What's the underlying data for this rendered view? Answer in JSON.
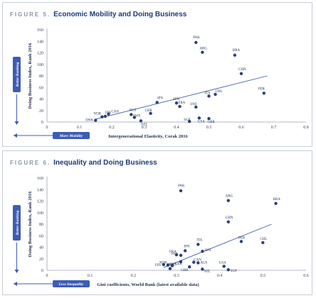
{
  "charts": [
    {
      "figure_label": "FIGURE 5.",
      "figure_title": "Economic Mobility and Doing Business",
      "note_y": "Better Ranking",
      "note_x": "More Mobility",
      "colors": {
        "point": "#2b3f78",
        "trend": "#3c5aa8",
        "axis": "#9aa3b5",
        "accent": "#3d5cb3"
      }
    },
    {
      "figure_label": "FIGURE 6.",
      "figure_title": "Inequality and Doing Business",
      "note_y": "Better Ranking",
      "note_x": "Less Inequality",
      "colors": {
        "point": "#2b3f78",
        "trend": "#3c5aa8",
        "axis": "#9aa3b5",
        "accent": "#3d5cb3"
      }
    }
  ],
  "chart_data": [
    {
      "type": "scatter",
      "title": "Economic Mobility and Doing Business",
      "xlabel": "Intergenerational Elasticity, Corak 2016",
      "ylabel": "Doing Business Index, Rank 2016",
      "xlim": [
        0,
        0.8
      ],
      "ylim": [
        0,
        160
      ],
      "xticks": [
        "0",
        "0.1",
        "0.2",
        "0.3",
        "0.4",
        "0.5",
        "0.6",
        "0.7",
        "0.8"
      ],
      "yticks": [
        "0",
        "20",
        "40",
        "60",
        "80",
        "100",
        "120",
        "140",
        "160"
      ],
      "grid": false,
      "trendline": {
        "x": [
          0.15,
          0.68
        ],
        "y": [
          5,
          80
        ]
      },
      "points": [
        {
          "label": "DNK",
          "x": 0.15,
          "y": 3
        },
        {
          "label": "NOR",
          "x": 0.17,
          "y": 9
        },
        {
          "label": "FIN",
          "x": 0.18,
          "y": 10
        },
        {
          "label": "CAN",
          "x": 0.19,
          "y": 14
        },
        {
          "label": "AUS",
          "x": 0.26,
          "y": 13
        },
        {
          "label": "SWE",
          "x": 0.27,
          "y": 8
        },
        {
          "label": "NZL",
          "x": 0.29,
          "y": 2
        },
        {
          "label": "GER",
          "x": 0.32,
          "y": 15
        },
        {
          "label": "JPN",
          "x": 0.34,
          "y": 34
        },
        {
          "label": "SPN",
          "x": 0.4,
          "y": 33
        },
        {
          "label": "FRA",
          "x": 0.41,
          "y": 27
        },
        {
          "label": "SWI",
          "x": 0.46,
          "y": 26
        },
        {
          "label": "SGP",
          "x": 0.44,
          "y": 1
        },
        {
          "label": "USA",
          "x": 0.47,
          "y": 7
        },
        {
          "label": "GBR",
          "x": 0.5,
          "y": 6
        },
        {
          "label": "ITA",
          "x": 0.5,
          "y": 45
        },
        {
          "label": "CHL",
          "x": 0.52,
          "y": 48
        },
        {
          "label": "PAK",
          "x": 0.46,
          "y": 138
        },
        {
          "label": "ARG",
          "x": 0.48,
          "y": 121
        },
        {
          "label": "BRA",
          "x": 0.58,
          "y": 116
        },
        {
          "label": "CHN",
          "x": 0.6,
          "y": 84
        },
        {
          "label": "PER",
          "x": 0.67,
          "y": 50
        }
      ]
    },
    {
      "type": "scatter",
      "title": "Inequality and Doing Business",
      "xlabel": "Gini coefficients, World Bank (latest available data)",
      "ylabel": "Doing Business Index, Rank 2016",
      "xlim": [
        0,
        0.6
      ],
      "ylim": [
        0,
        160
      ],
      "xticks": [
        "0",
        "0.1",
        "0.2",
        "0.3",
        "0.4",
        "0.5",
        "0.6"
      ],
      "yticks": [
        "0",
        "20",
        "40",
        "60",
        "80",
        "100",
        "120",
        "140",
        "160"
      ],
      "grid": false,
      "trendline": {
        "x": [
          0.27,
          0.52
        ],
        "y": [
          5,
          80
        ]
      },
      "points": [
        {
          "label": "FIN",
          "x": 0.27,
          "y": 10
        },
        {
          "label": "NOR",
          "x": 0.28,
          "y": 9
        },
        {
          "label": "DNK",
          "x": 0.285,
          "y": 3
        },
        {
          "label": "SWE",
          "x": 0.29,
          "y": 8
        },
        {
          "label": "FRA",
          "x": 0.3,
          "y": 27
        },
        {
          "label": "SWI",
          "x": 0.31,
          "y": 26
        },
        {
          "label": "GER",
          "x": 0.31,
          "y": 15
        },
        {
          "label": "GBR",
          "x": 0.33,
          "y": 6
        },
        {
          "label": "JPN",
          "x": 0.32,
          "y": 34
        },
        {
          "label": "CAN",
          "x": 0.34,
          "y": 14
        },
        {
          "label": "ITA",
          "x": 0.35,
          "y": 45
        },
        {
          "label": "SPN",
          "x": 0.36,
          "y": 33
        },
        {
          "label": "AUS",
          "x": 0.35,
          "y": 13
        },
        {
          "label": "NZL",
          "x": 0.36,
          "y": 2
        },
        {
          "label": "PAK",
          "x": 0.31,
          "y": 138
        },
        {
          "label": "ARG",
          "x": 0.42,
          "y": 121
        },
        {
          "label": "BRA",
          "x": 0.53,
          "y": 116
        },
        {
          "label": "CHN",
          "x": 0.42,
          "y": 84
        },
        {
          "label": "PER",
          "x": 0.45,
          "y": 50
        },
        {
          "label": "CHL",
          "x": 0.5,
          "y": 48
        },
        {
          "label": "USA",
          "x": 0.41,
          "y": 7
        },
        {
          "label": "SGP",
          "x": 0.42,
          "y": 1
        }
      ]
    }
  ]
}
